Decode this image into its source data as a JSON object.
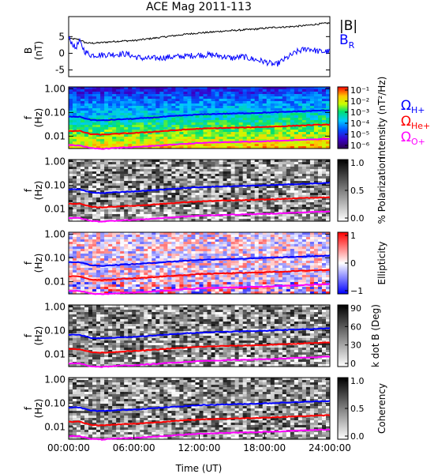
{
  "chart_data": {
    "type": "line",
    "title": "ACE Mag 2011-113",
    "xlabel": "Time (UT)",
    "x_ticks": [
      "00:00:00",
      "06:00:00",
      "12:00:00",
      "18:00:00",
      "24:00:00"
    ],
    "x_range_hours": [
      0,
      24
    ],
    "panels": [
      {
        "id": "field",
        "type": "line",
        "ylabel": [
          "B",
          "(nT)"
        ],
        "ylim": [
          -7,
          11
        ],
        "y_ticks": [
          -5,
          0,
          5
        ],
        "legend": [
          "|B|",
          "B_R"
        ],
        "series": [
          {
            "name": "|B|",
            "color": "#000000",
            "x": [
              0,
              0.5,
              1,
              1.5,
              2,
              3,
              4,
              5,
              6,
              7,
              8,
              9,
              10,
              11,
              12,
              13,
              14,
              15,
              16,
              17,
              18,
              19,
              20,
              21,
              22,
              23,
              24
            ],
            "y": [
              4.3,
              4.3,
              4.1,
              3.2,
              3.0,
              3.2,
              3.5,
              3.7,
              3.8,
              4.2,
              4.6,
              5.0,
              5.4,
              5.8,
              6.1,
              6.3,
              6.6,
              6.8,
              7.0,
              7.2,
              7.5,
              7.8,
              7.9,
              8.1,
              8.4,
              8.8,
              9.1
            ]
          },
          {
            "name": "B_R",
            "color": "#0000ff",
            "x": [
              0,
              0.3,
              0.6,
              1,
              1.5,
              2,
              3,
              4,
              5,
              5.5,
              6,
              7,
              8,
              9,
              10,
              11,
              12,
              13,
              14,
              15,
              16,
              17,
              18,
              19,
              20,
              21,
              22,
              23,
              24
            ],
            "y": [
              4.5,
              3.2,
              1.5,
              3.5,
              0.5,
              -0.5,
              -0.5,
              -0.3,
              -0.2,
              -0.3,
              -1.0,
              -1.6,
              -1.5,
              -1.2,
              -1.0,
              -0.8,
              -0.5,
              -0.5,
              -0.8,
              -1.5,
              -1.0,
              -1.8,
              -2.5,
              -3.5,
              -1.5,
              0.5,
              1.5,
              0.5,
              0.5
            ]
          }
        ]
      },
      {
        "id": "intensity",
        "type": "heatmap",
        "ylabel": [
          "f",
          "(Hz)"
        ],
        "ylim": [
          0.003,
          1.2
        ],
        "y_scale": "log",
        "y_ticks": [
          "1.00",
          "0.10",
          "0.01"
        ],
        "colorbar_label": "Intensity (nT²/Hz)",
        "colorbar_ticks": [
          "10⁻¹",
          "10⁻²",
          "10⁻³",
          "10⁻⁴",
          "10⁻⁵",
          "10⁻⁶"
        ],
        "colormap": "rainbow"
      },
      {
        "id": "polarization",
        "type": "heatmap",
        "ylabel": [
          "f",
          "(Hz)"
        ],
        "ylim": [
          0.003,
          1.2
        ],
        "y_scale": "log",
        "y_ticks": [
          "1.00",
          "0.10",
          "0.01"
        ],
        "colorbar_label": "% Polarization",
        "colorbar_ticks": [
          "1.0",
          "0.5",
          "0.0"
        ],
        "colormap": "gray"
      },
      {
        "id": "ellipticity",
        "type": "heatmap",
        "ylabel": [
          "f",
          "(Hz)"
        ],
        "ylim": [
          0.003,
          1.2
        ],
        "y_scale": "log",
        "y_ticks": [
          "1.00",
          "0.10",
          "0.01"
        ],
        "colorbar_label": "Ellipticity",
        "colorbar_ticks": [
          "1",
          "0",
          "−1"
        ],
        "colormap": "bwr"
      },
      {
        "id": "kdotb",
        "type": "heatmap",
        "ylabel": [
          "f",
          "(Hz)"
        ],
        "ylim": [
          0.003,
          1.2
        ],
        "y_scale": "log",
        "y_ticks": [
          "1.00",
          "0.10",
          "0.01"
        ],
        "colorbar_label": "k dot B (Deg)",
        "colorbar_ticks": [
          "90",
          "60",
          "30",
          "0"
        ],
        "colormap": "gray"
      },
      {
        "id": "coherency",
        "type": "heatmap",
        "ylabel": [
          "f",
          "(Hz)"
        ],
        "ylim": [
          0.003,
          1.2
        ],
        "y_scale": "log",
        "y_ticks": [
          "1.00",
          "0.10",
          "0.01"
        ],
        "colorbar_label": "Coherency",
        "colorbar_ticks": [
          "1.0",
          "0.5",
          "0.0"
        ],
        "colormap": "gray"
      }
    ],
    "gyrofrequency_lines": [
      {
        "name": "Ω_H+",
        "color": "#0000ff",
        "x": [
          0,
          1,
          2,
          3,
          4,
          5,
          6,
          8,
          10,
          12,
          14,
          16,
          18,
          20,
          22,
          24
        ],
        "y": [
          0.066,
          0.066,
          0.049,
          0.046,
          0.049,
          0.052,
          0.054,
          0.062,
          0.072,
          0.082,
          0.088,
          0.092,
          0.098,
          0.106,
          0.115,
          0.125
        ]
      },
      {
        "name": "Ω_He+",
        "color": "#ff0000",
        "x": [
          0,
          1,
          2,
          3,
          4,
          5,
          6,
          8,
          10,
          12,
          14,
          16,
          18,
          20,
          22,
          24
        ],
        "y": [
          0.0165,
          0.0165,
          0.0122,
          0.0115,
          0.0122,
          0.013,
          0.0135,
          0.0155,
          0.018,
          0.0205,
          0.022,
          0.023,
          0.0245,
          0.0265,
          0.029,
          0.031
        ]
      },
      {
        "name": "Ω_O+",
        "color": "#ff00ff",
        "x": [
          0,
          1,
          2,
          3,
          4,
          5,
          6,
          8,
          10,
          12,
          14,
          16,
          18,
          20,
          22,
          24
        ],
        "y": [
          0.0041,
          0.0041,
          0.0031,
          0.0029,
          0.0031,
          0.0033,
          0.0034,
          0.0039,
          0.0045,
          0.0051,
          0.0055,
          0.0058,
          0.0061,
          0.0066,
          0.0072,
          0.0078
        ]
      }
    ],
    "gyro_legend": [
      "Ω",
      "H+",
      "Ω",
      "He+",
      "Ω",
      "O+"
    ]
  }
}
